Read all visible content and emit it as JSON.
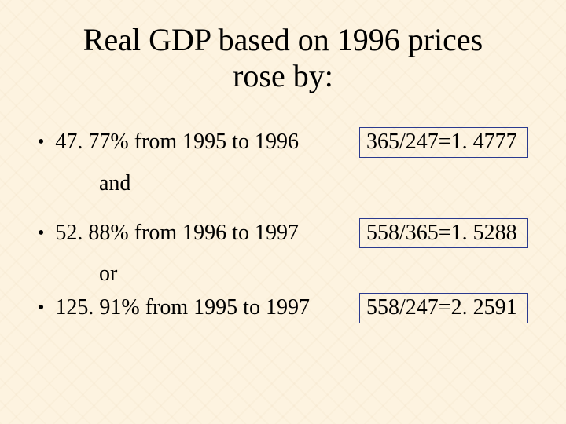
{
  "title_line1": "Real GDP based on 1996 prices",
  "title_line2": "rose by:",
  "items": {
    "item1": {
      "text": "47. 77% from 1995 to 1996",
      "calc": "365/247=1. 4777"
    },
    "connector1": "and",
    "item2": {
      "text": "52. 88% from 1996 to 1997",
      "calc": "558/365=1. 5288"
    },
    "connector2": "or",
    "item3": {
      "text": "125. 91% from 1995 to 1997",
      "calc": "558/247=2. 2591"
    }
  },
  "colors": {
    "background": "#fdf3e0",
    "text": "#000000",
    "box_border": "#2a3a8f"
  }
}
